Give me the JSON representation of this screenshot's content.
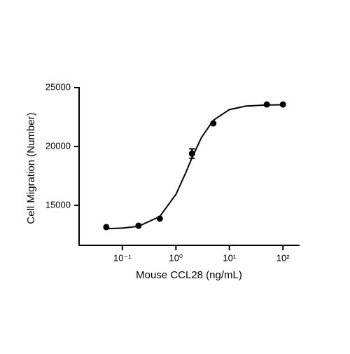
{
  "chart_data": {
    "type": "scatter",
    "x_label": "Mouse CCL28 (ng/mL)",
    "y_label": "Cell Migration (Number)",
    "x_scale": "log",
    "x": [
      0.05,
      0.2,
      0.5,
      2,
      5,
      50,
      100
    ],
    "values": [
      13150,
      13270,
      13870,
      19400,
      21960,
      23570,
      23570
    ],
    "errors": [
      60,
      60,
      60,
      400,
      80,
      60,
      60
    ],
    "fit": {
      "x": [
        0.05,
        0.1,
        0.2,
        0.5,
        1,
        1.5,
        2,
        3,
        5,
        10,
        20,
        50,
        100
      ],
      "y": [
        13018,
        13064,
        13219,
        14050,
        15931,
        17689,
        19042,
        20757,
        22227,
        23133,
        23427,
        23526,
        23543
      ]
    },
    "color": "#000000",
    "xlim": [
      0.0155,
      205
    ],
    "ylim": [
      11600,
      25000
    ],
    "xticks": [
      {
        "value": 0.1,
        "label": "10⁻¹"
      },
      {
        "value": 1,
        "label": "10⁰"
      },
      {
        "value": 10,
        "label": "10¹"
      },
      {
        "value": 100,
        "label": "10²"
      }
    ],
    "yticks": [
      15000,
      20000,
      25000
    ]
  }
}
